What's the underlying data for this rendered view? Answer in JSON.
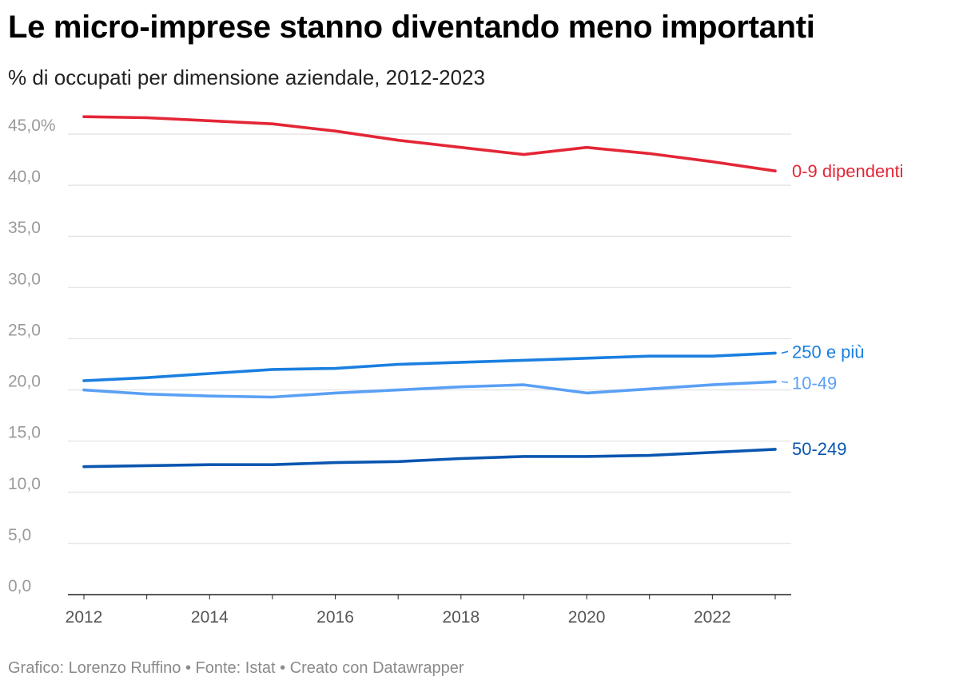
{
  "header": {
    "title": "Le micro-imprese stanno diventando meno importanti",
    "subtitle": "% di occupati per dimensione aziendale, 2012-2023"
  },
  "footer": {
    "credits": "Grafico: Lorenzo Ruffino • Fonte: Istat • Creato con Datawrapper"
  },
  "chart_data": {
    "type": "line",
    "title": "Le micro-imprese stanno diventando meno importanti",
    "subtitle": "% di occupati per dimensione aziendale, 2012-2023",
    "xlabel": "",
    "ylabel": "",
    "x": [
      2012,
      2013,
      2014,
      2015,
      2016,
      2017,
      2018,
      2019,
      2020,
      2021,
      2022,
      2023
    ],
    "x_ticks": [
      "2012",
      "2014",
      "2016",
      "2018",
      "2020",
      "2022"
    ],
    "ylim": [
      0,
      45
    ],
    "y_ticks": [
      {
        "value": 0,
        "label": "0,0"
      },
      {
        "value": 5,
        "label": "5,0"
      },
      {
        "value": 10,
        "label": "10,0"
      },
      {
        "value": 15,
        "label": "15,0"
      },
      {
        "value": 20,
        "label": "20,0"
      },
      {
        "value": 25,
        "label": "25,0"
      },
      {
        "value": 30,
        "label": "30,0"
      },
      {
        "value": 35,
        "label": "35,0"
      },
      {
        "value": 40,
        "label": "40,0"
      },
      {
        "value": 45,
        "label": "45,0%"
      }
    ],
    "grid": true,
    "legend": "direct labels at line ends",
    "series": [
      {
        "name": "0-9 dipendenti",
        "color": "#e32636",
        "values": [
          46.7,
          46.6,
          46.3,
          46.0,
          45.3,
          44.4,
          43.7,
          43.0,
          43.7,
          43.1,
          42.3,
          41.4
        ]
      },
      {
        "name": "250 e più",
        "color": "#1a7fe0",
        "values": [
          20.9,
          21.2,
          21.6,
          22.0,
          22.1,
          22.5,
          22.7,
          22.9,
          23.1,
          23.3,
          23.3,
          23.6
        ]
      },
      {
        "name": "10-49",
        "color": "#5aa0f5",
        "values": [
          20.0,
          19.6,
          19.4,
          19.3,
          19.7,
          20.0,
          20.3,
          20.5,
          19.7,
          20.1,
          20.5,
          20.8
        ]
      },
      {
        "name": "50-249",
        "color": "#0a56b0",
        "values": [
          12.5,
          12.6,
          12.7,
          12.7,
          12.9,
          13.0,
          13.3,
          13.5,
          13.5,
          13.6,
          13.9,
          14.2
        ]
      }
    ]
  }
}
